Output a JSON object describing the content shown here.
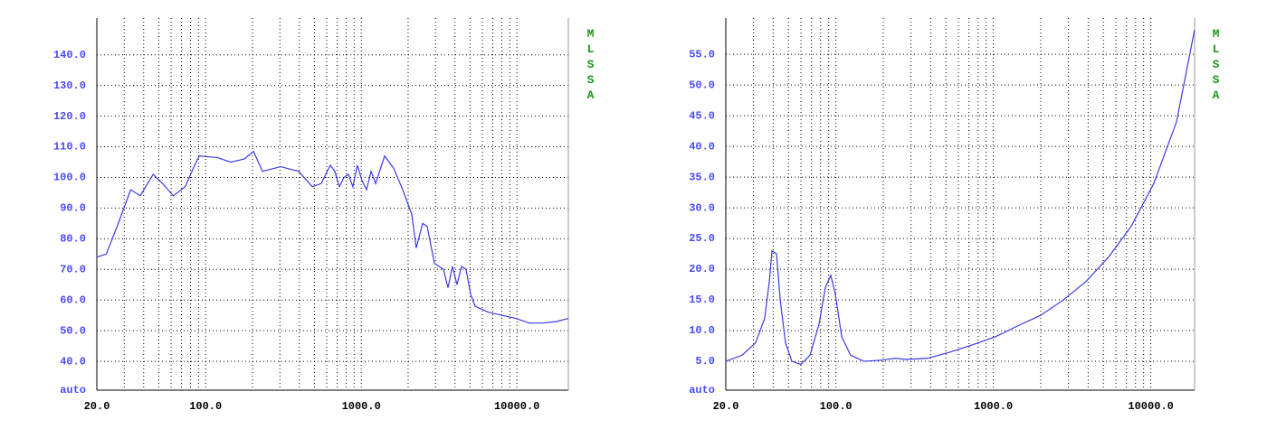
{
  "chart_data": [
    {
      "type": "line",
      "xlog": true,
      "grid": true,
      "color": "#3a3ae6",
      "watermark": "MLSSA",
      "xlim": [
        20,
        21400
      ],
      "ylim": [
        30.6,
        152
      ],
      "xticks": [
        {
          "value": 20,
          "label": "20.0"
        },
        {
          "value": 100,
          "label": "100.0"
        },
        {
          "value": 1000,
          "label": "1000.0"
        },
        {
          "value": 10000,
          "label": "10000.0"
        }
      ],
      "xminor": [
        30,
        40,
        50,
        60,
        70,
        80,
        90,
        200,
        300,
        400,
        500,
        600,
        700,
        800,
        900,
        2000,
        3000,
        4000,
        5000,
        6000,
        7000,
        8000,
        9000
      ],
      "yticks": [
        {
          "value": 30.6,
          "label": "auto"
        },
        {
          "value": 40,
          "label": "40.0"
        },
        {
          "value": 50,
          "label": "50.0"
        },
        {
          "value": 60,
          "label": "60.0"
        },
        {
          "value": 70,
          "label": "70.0"
        },
        {
          "value": 80,
          "label": "80.0"
        },
        {
          "value": 90,
          "label": "90.0"
        },
        {
          "value": 100,
          "label": "100.0"
        },
        {
          "value": 110,
          "label": "110.0"
        },
        {
          "value": 120,
          "label": "120.0"
        },
        {
          "value": 130,
          "label": "130.0"
        },
        {
          "value": 140,
          "label": "140.0"
        }
      ],
      "x": [
        20,
        23,
        27,
        33,
        38,
        46,
        53,
        62,
        74,
        85,
        91,
        119,
        145,
        177,
        203,
        232,
        303,
        396,
        484,
        553,
        632,
        676,
        723,
        773,
        826,
        883,
        944,
        1010,
        1081,
        1156,
        1236,
        1413,
        1615,
        1846,
        2110,
        2256,
        2479,
        2651,
        2951,
        3373,
        3606,
        3855,
        4122,
        4406,
        4711,
        5036,
        5384,
        6580,
        8052,
        9840,
        12025,
        14700,
        17960,
        21400
      ],
      "values": [
        74,
        75,
        84,
        96,
        94,
        101,
        98,
        94,
        97,
        104,
        107,
        106.5,
        105,
        106,
        108.5,
        102,
        103.5,
        102,
        97,
        98,
        104,
        102,
        97,
        100,
        101,
        97,
        104,
        99,
        96,
        102,
        98,
        107,
        103,
        96,
        88,
        77,
        85,
        84,
        72,
        70,
        64,
        71,
        65,
        71,
        70,
        62,
        58,
        56,
        55,
        54,
        52.5,
        52.5,
        53,
        54
      ]
    },
    {
      "type": "line",
      "xlog": true,
      "grid": true,
      "color": "#3a3ae6",
      "watermark": "MLSSA",
      "xlim": [
        20,
        18970
      ],
      "ylim": [
        0.3,
        60.9
      ],
      "xticks": [
        {
          "value": 20,
          "label": "20.0"
        },
        {
          "value": 100,
          "label": "100.0"
        },
        {
          "value": 1000,
          "label": "1000.0"
        },
        {
          "value": 10000,
          "label": "10000.0"
        }
      ],
      "xminor": [
        30,
        40,
        50,
        60,
        70,
        80,
        90,
        200,
        300,
        400,
        500,
        600,
        700,
        800,
        900,
        2000,
        3000,
        4000,
        5000,
        6000,
        7000,
        8000,
        9000
      ],
      "yticks": [
        {
          "value": 0.3,
          "label": "auto"
        },
        {
          "value": 5,
          "label": "5.0"
        },
        {
          "value": 10,
          "label": "10.0"
        },
        {
          "value": 15,
          "label": "15.0"
        },
        {
          "value": 20,
          "label": "20.0"
        },
        {
          "value": 25,
          "label": "25.0"
        },
        {
          "value": 30,
          "label": "30.0"
        },
        {
          "value": 35,
          "label": "35.0"
        },
        {
          "value": 40,
          "label": "40.0"
        },
        {
          "value": 45,
          "label": "45.0"
        },
        {
          "value": 50,
          "label": "50.0"
        },
        {
          "value": 55,
          "label": "55.0"
        }
      ],
      "x": [
        20,
        25.4,
        30.9,
        35.3,
        37.8,
        39.3,
        42,
        44.3,
        47.9,
        52.6,
        60,
        68.5,
        78.1,
        85.7,
        92.8,
        99.1,
        108.9,
        124,
        151,
        197,
        240,
        275,
        383,
        532,
        741,
        1032,
        1436,
        2000,
        2786,
        3875,
        5397,
        7515,
        10460,
        14560,
        18970
      ],
      "values": [
        5,
        6,
        8,
        12,
        18,
        23,
        22.5,
        15,
        8,
        5,
        4.5,
        6,
        11,
        17,
        19,
        16,
        9,
        6,
        5,
        5.2,
        5.5,
        5.3,
        5.5,
        6.5,
        7.7,
        9,
        10.8,
        12.5,
        15,
        18,
        22,
        27,
        34,
        44,
        59
      ]
    }
  ]
}
